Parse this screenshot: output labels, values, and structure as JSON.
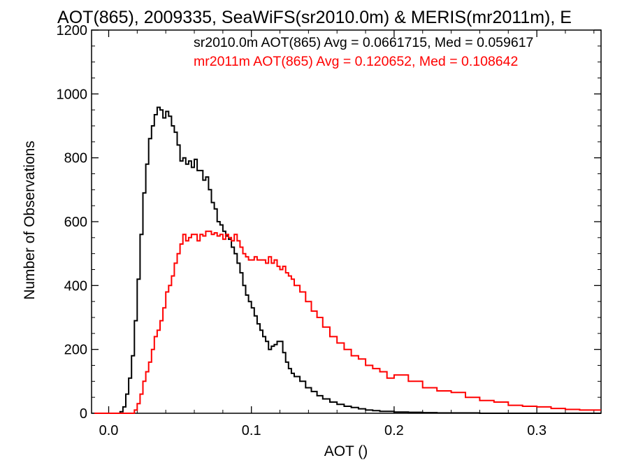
{
  "chart_data": {
    "type": "line",
    "title": "AOT(865), 2009335, SeaWiFS(sr2010.0m) & MERIS(mr2011m), E",
    "xlabel": "AOT ()",
    "ylabel": "Number of Observations",
    "xlim": [
      -0.012,
      0.345
    ],
    "ylim": [
      0,
      1200
    ],
    "x_ticks": [
      0.0,
      0.1,
      0.2,
      0.3
    ],
    "x_tick_labels": [
      "0.0",
      "0.1",
      "0.2",
      "0.3"
    ],
    "y_ticks": [
      0,
      200,
      400,
      600,
      800,
      1000,
      1200
    ],
    "y_tick_labels": [
      "0",
      "200",
      "400",
      "600",
      "800",
      "1000",
      "1200"
    ],
    "grid": false,
    "legend_placement": "top-right",
    "annotations": [
      {
        "text": "sr2010.0m AOT(865) Avg = 0.0661715, Med = 0.059617",
        "color": "#000000"
      },
      {
        "text": "mr2011m AOT(865) Avg = 0.120652, Med = 0.108642",
        "color": "#ff0000"
      }
    ],
    "series": [
      {
        "color": "#000000",
        "x": [
          -0.01,
          0.0,
          0.005,
          0.008,
          0.01,
          0.012,
          0.014,
          0.016,
          0.018,
          0.02,
          0.022,
          0.024,
          0.026,
          0.028,
          0.03,
          0.032,
          0.034,
          0.036,
          0.038,
          0.04,
          0.042,
          0.044,
          0.046,
          0.048,
          0.05,
          0.052,
          0.054,
          0.056,
          0.058,
          0.06,
          0.062,
          0.064,
          0.066,
          0.068,
          0.07,
          0.072,
          0.074,
          0.076,
          0.078,
          0.08,
          0.082,
          0.084,
          0.086,
          0.088,
          0.09,
          0.092,
          0.094,
          0.096,
          0.098,
          0.1,
          0.102,
          0.104,
          0.106,
          0.108,
          0.11,
          0.112,
          0.114,
          0.116,
          0.118,
          0.12,
          0.122,
          0.124,
          0.126,
          0.128,
          0.13,
          0.134,
          0.138,
          0.142,
          0.146,
          0.15,
          0.155,
          0.16,
          0.165,
          0.17,
          0.175,
          0.18,
          0.185,
          0.19,
          0.2,
          0.21,
          0.22,
          0.23,
          0.24,
          0.26,
          0.28,
          0.3,
          0.32,
          0.34
        ],
        "y": [
          0,
          0,
          0,
          5,
          20,
          60,
          110,
          180,
          290,
          420,
          560,
          690,
          780,
          860,
          900,
          935,
          958,
          950,
          925,
          945,
          930,
          900,
          880,
          840,
          790,
          800,
          780,
          790,
          770,
          795,
          760,
          760,
          730,
          740,
          700,
          660,
          640,
          600,
          590,
          570,
          555,
          545,
          520,
          500,
          470,
          440,
          400,
          370,
          350,
          330,
          305,
          280,
          260,
          240,
          225,
          200,
          210,
          215,
          225,
          225,
          190,
          160,
          140,
          125,
          115,
          100,
          80,
          68,
          55,
          45,
          35,
          28,
          22,
          18,
          14,
          10,
          8,
          6,
          4,
          3,
          2,
          1,
          1,
          0,
          0,
          0,
          0,
          0
        ]
      },
      {
        "color": "#ff0000",
        "x": [
          -0.01,
          0.0,
          0.01,
          0.018,
          0.02,
          0.022,
          0.024,
          0.026,
          0.028,
          0.03,
          0.032,
          0.034,
          0.036,
          0.038,
          0.04,
          0.042,
          0.044,
          0.046,
          0.048,
          0.05,
          0.052,
          0.054,
          0.056,
          0.058,
          0.06,
          0.062,
          0.064,
          0.066,
          0.068,
          0.07,
          0.072,
          0.074,
          0.076,
          0.078,
          0.08,
          0.082,
          0.084,
          0.086,
          0.088,
          0.09,
          0.092,
          0.094,
          0.096,
          0.098,
          0.1,
          0.102,
          0.104,
          0.106,
          0.108,
          0.11,
          0.112,
          0.114,
          0.116,
          0.118,
          0.12,
          0.122,
          0.124,
          0.126,
          0.128,
          0.13,
          0.134,
          0.138,
          0.142,
          0.146,
          0.15,
          0.155,
          0.16,
          0.165,
          0.17,
          0.175,
          0.18,
          0.185,
          0.19,
          0.195,
          0.2,
          0.21,
          0.22,
          0.23,
          0.24,
          0.25,
          0.26,
          0.27,
          0.28,
          0.29,
          0.3,
          0.31,
          0.32,
          0.33,
          0.34
        ],
        "y": [
          0,
          0,
          0,
          10,
          30,
          60,
          100,
          130,
          160,
          200,
          240,
          260,
          290,
          330,
          380,
          400,
          430,
          470,
          500,
          530,
          560,
          540,
          550,
          560,
          560,
          540,
          560,
          555,
          570,
          570,
          560,
          565,
          555,
          560,
          545,
          560,
          550,
          540,
          560,
          540,
          520,
          500,
          490,
          480,
          480,
          490,
          480,
          480,
          480,
          470,
          490,
          470,
          480,
          460,
          450,
          460,
          440,
          430,
          420,
          400,
          380,
          350,
          320,
          300,
          270,
          240,
          220,
          200,
          180,
          170,
          150,
          140,
          130,
          110,
          120,
          100,
          80,
          70,
          65,
          50,
          40,
          35,
          25,
          22,
          20,
          15,
          12,
          10,
          10
        ]
      }
    ]
  }
}
